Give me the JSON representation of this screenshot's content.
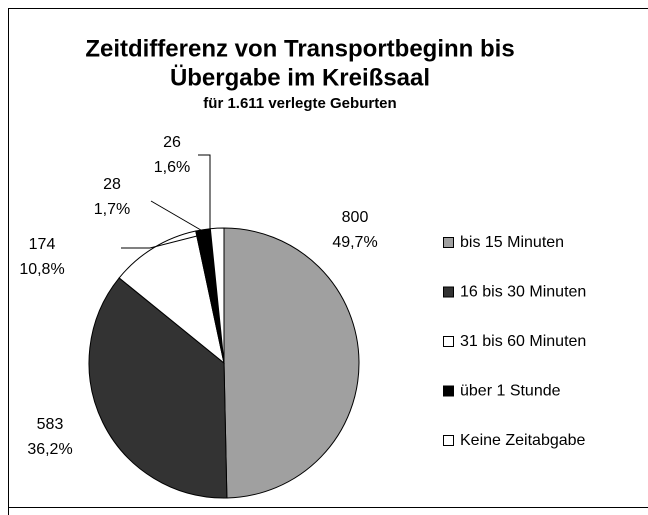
{
  "chart_data": {
    "type": "pie",
    "title": [
      "Zeitdifferenz von Transportbeginn bis",
      "Übergabe im Kreißsaal"
    ],
    "subtitle": "für 1.611 verlegte Geburten",
    "categories": [
      "bis 15 Minuten",
      "16 bis 30 Minuten",
      "31 bis 60 Minuten",
      "über 1 Stunde",
      "Keine Zeitabgabe"
    ],
    "values": [
      800,
      583,
      174,
      28,
      26
    ],
    "percent_labels": [
      "49,7%",
      "36,2%",
      "10,8%",
      "1,7%",
      "1,6%"
    ],
    "colors": [
      "#a0a0a0",
      "#333333",
      "#ffffff",
      "#000000",
      "#ffffff"
    ],
    "legend": "right"
  }
}
